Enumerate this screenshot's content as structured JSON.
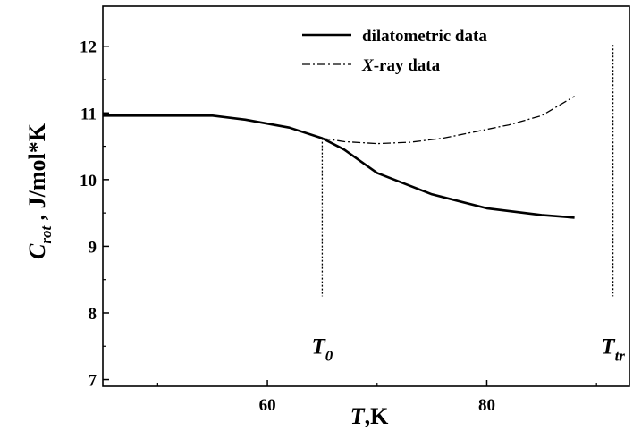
{
  "chart_data": {
    "type": "line",
    "xlim": [
      45,
      93
    ],
    "ylim": [
      6.9,
      12.6
    ],
    "x_ticks": [
      {
        "value": 60,
        "label": "60"
      },
      {
        "value": 80,
        "label": "80"
      }
    ],
    "y_ticks": [
      {
        "value": 7,
        "label": "7"
      },
      {
        "value": 8,
        "label": "8"
      },
      {
        "value": 9,
        "label": "9"
      },
      {
        "value": 10,
        "label": "10"
      },
      {
        "value": 11,
        "label": "11"
      },
      {
        "value": 12,
        "label": "12"
      }
    ],
    "xlabel": {
      "main": "T",
      "rest": ",K"
    },
    "ylabel": {
      "main": "C",
      "sub": "rot",
      "rest": " , J/mol*K"
    },
    "grid": false,
    "legend_position": "top-right",
    "series": [
      {
        "name": "dilatometric data",
        "style": "solid",
        "x": [
          45,
          50,
          55,
          58,
          62,
          65,
          67,
          70,
          75,
          80,
          85,
          88
        ],
        "y": [
          10.96,
          10.96,
          10.96,
          10.9,
          10.78,
          10.62,
          10.45,
          10.1,
          9.78,
          9.57,
          9.47,
          9.43
        ]
      },
      {
        "name_italic": "X",
        "name": "-ray data",
        "style": "dashdot",
        "x": [
          65,
          67,
          70,
          73,
          76,
          79,
          82,
          85,
          88
        ],
        "y": [
          10.62,
          10.57,
          10.54,
          10.56,
          10.62,
          10.72,
          10.82,
          10.96,
          11.25
        ]
      }
    ],
    "annotations": [
      {
        "main": "T",
        "sub": "0",
        "x": 65,
        "line_y": [
          10.62,
          8.25
        ]
      },
      {
        "main": "T",
        "sub": "tr",
        "x": 91.5,
        "line_y": [
          12.02,
          8.25
        ]
      }
    ]
  }
}
